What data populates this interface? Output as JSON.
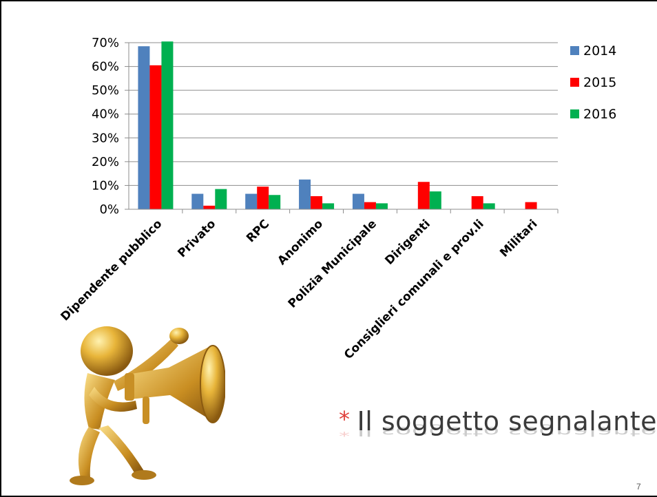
{
  "chart_data": {
    "type": "bar",
    "categories": [
      "Dipendente pubblico",
      "Privato",
      "RPC",
      "Anonimo",
      "Polizia Municipale",
      "Dirigenti",
      "Consiglieri comunali e prov.li",
      "Militari"
    ],
    "series": [
      {
        "name": "2014",
        "color": "#4f81bd",
        "values": [
          68.5,
          6.5,
          6.5,
          12.5,
          6.5,
          0,
          0,
          0
        ]
      },
      {
        "name": "2015",
        "color": "#ff0000",
        "values": [
          60.5,
          1.5,
          9.5,
          5.5,
          3,
          11.5,
          5.5,
          3
        ]
      },
      {
        "name": "2016",
        "color": "#00b050",
        "values": [
          70.5,
          8.5,
          6,
          2.5,
          2.5,
          7.5,
          2.5,
          0
        ]
      }
    ],
    "yticks": [
      "0%",
      "10%",
      "20%",
      "30%",
      "40%",
      "50%",
      "60%",
      "70%"
    ],
    "ylim": [
      0,
      70
    ],
    "grid": true,
    "legend": "right"
  },
  "slide": {
    "bullet": "*",
    "heading": "Il soggetto segnalante",
    "page_number": "7"
  },
  "illustration": {
    "icon": "golden-figure-with-megaphone-icon"
  }
}
